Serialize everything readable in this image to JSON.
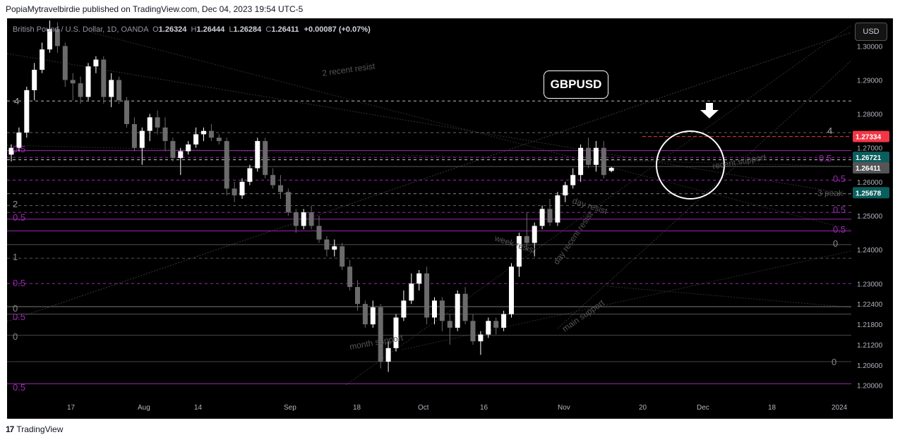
{
  "header": {
    "published_line": "PopiaMytravelbirdie published on TradingView.com, Dec 04, 2023 19:54 UTC-5"
  },
  "legend": {
    "symbol": "British Pound / U.S. Dollar, 1D, OANDA",
    "o_label": "O",
    "o_value": "1.26324",
    "h_label": "H",
    "h_value": "1.26444",
    "l_label": "L",
    "l_value": "1.26284",
    "c_label": "C",
    "c_value": "1.26411",
    "change": "+0.00087 (+0.07%)"
  },
  "currency_button": "USD",
  "annotation_box": "GBPUSD",
  "footer": {
    "brand": "TradingView"
  },
  "colors": {
    "background": "#000000",
    "candle_up": "#ffffff",
    "candle_down": "#6b6b6b",
    "fib_purple": "#9c27b0",
    "resistance_red": "#f23645",
    "label_teal": "#0b5e5e"
  },
  "chart_data": {
    "type": "candlestick",
    "instrument": "British Pound / U.S. Dollar, 1D, OANDA",
    "ylim": [
      1.196,
      1.3065
    ],
    "y_ticks": [
      "1.30000",
      "1.29000",
      "1.28000",
      "1.27000",
      "1.26000",
      "1.25000",
      "1.24000",
      "1.23000",
      "1.22400",
      "1.21800",
      "1.21200",
      "1.20600",
      "1.20000"
    ],
    "y_tick_values": [
      1.3,
      1.29,
      1.28,
      1.27,
      1.26,
      1.25,
      1.24,
      1.23,
      1.224,
      1.218,
      1.212,
      1.206,
      1.2
    ],
    "x_ticks": [
      {
        "label": "17",
        "index": 5
      },
      {
        "label": "Aug",
        "index": 12
      },
      {
        "label": "14",
        "index": 20
      },
      {
        "label": "Sep",
        "index": 28
      },
      {
        "label": "18",
        "index": 37
      },
      {
        "label": "Oct",
        "index": 43
      },
      {
        "label": "16",
        "index": 50
      },
      {
        "label": "Nov",
        "index": 57
      },
      {
        "label": "20",
        "index": 66
      },
      {
        "label": "Dec",
        "index": 73
      },
      {
        "label": "18",
        "index": 81
      },
      {
        "label": "2024",
        "index": 88
      }
    ],
    "price_labels": [
      {
        "value": "1.27334",
        "price": 1.27334,
        "color": "#f23645"
      },
      {
        "value": "1.26721",
        "price": 1.26721,
        "color": "#0b5e5e"
      },
      {
        "value": "1.26411",
        "price": 1.26411,
        "color": "#555555"
      },
      {
        "value": "1.25678",
        "price": 1.25678,
        "color": "#0b5e5e"
      }
    ],
    "candles": [
      [
        1.268,
        1.271,
        1.266,
        1.27
      ],
      [
        1.27,
        1.276,
        1.269,
        1.2745
      ],
      [
        1.2745,
        1.288,
        1.273,
        1.287
      ],
      [
        1.287,
        1.295,
        1.284,
        1.293
      ],
      [
        1.293,
        1.301,
        1.292,
        1.299
      ],
      [
        1.299,
        1.3075,
        1.298,
        1.305
      ],
      [
        1.305,
        1.307,
        1.298,
        1.3
      ],
      [
        1.3,
        1.301,
        1.288,
        1.29
      ],
      [
        1.29,
        1.292,
        1.284,
        1.289
      ],
      [
        1.289,
        1.291,
        1.283,
        1.285
      ],
      [
        1.285,
        1.295,
        1.284,
        1.294
      ],
      [
        1.294,
        1.297,
        1.292,
        1.296
      ],
      [
        1.296,
        1.297,
        1.283,
        1.285
      ],
      [
        1.285,
        1.292,
        1.282,
        1.29
      ],
      [
        1.29,
        1.291,
        1.283,
        1.284
      ],
      [
        1.284,
        1.285,
        1.276,
        1.277
      ],
      [
        1.277,
        1.279,
        1.269,
        1.27
      ],
      [
        1.27,
        1.276,
        1.265,
        1.275
      ],
      [
        1.275,
        1.28,
        1.272,
        1.279
      ],
      [
        1.279,
        1.281,
        1.274,
        1.276
      ],
      [
        1.276,
        1.279,
        1.269,
        1.272
      ],
      [
        1.272,
        1.273,
        1.266,
        1.267
      ],
      [
        1.267,
        1.27,
        1.262,
        1.269
      ],
      [
        1.269,
        1.272,
        1.268,
        1.271
      ],
      [
        1.271,
        1.276,
        1.27,
        1.274
      ],
      [
        1.274,
        1.276,
        1.272,
        1.275
      ],
      [
        1.275,
        1.277,
        1.272,
        1.273
      ],
      [
        1.273,
        1.274,
        1.271,
        1.272
      ],
      [
        1.272,
        1.273,
        1.256,
        1.258
      ],
      [
        1.258,
        1.26,
        1.254,
        1.256
      ],
      [
        1.256,
        1.261,
        1.255,
        1.26
      ],
      [
        1.26,
        1.265,
        1.259,
        1.264
      ],
      [
        1.264,
        1.273,
        1.263,
        1.272
      ],
      [
        1.272,
        1.273,
        1.261,
        1.262
      ],
      [
        1.262,
        1.264,
        1.258,
        1.259
      ],
      [
        1.259,
        1.262,
        1.255,
        1.257
      ],
      [
        1.257,
        1.258,
        1.25,
        1.251
      ],
      [
        1.251,
        1.252,
        1.245,
        1.247
      ],
      [
        1.247,
        1.252,
        1.246,
        1.251
      ],
      [
        1.251,
        1.253,
        1.246,
        1.247
      ],
      [
        1.247,
        1.25,
        1.242,
        1.243
      ],
      [
        1.243,
        1.244,
        1.238,
        1.24
      ],
      [
        1.24,
        1.243,
        1.238,
        1.241
      ],
      [
        1.241,
        1.242,
        1.234,
        1.235
      ],
      [
        1.235,
        1.237,
        1.228,
        1.229
      ],
      [
        1.229,
        1.231,
        1.222,
        1.224
      ],
      [
        1.224,
        1.225,
        1.217,
        1.218
      ],
      [
        1.218,
        1.225,
        1.217,
        1.223
      ],
      [
        1.223,
        1.224,
        1.205,
        1.207
      ],
      [
        1.207,
        1.213,
        1.204,
        1.211
      ],
      [
        1.211,
        1.221,
        1.21,
        1.22
      ],
      [
        1.22,
        1.228,
        1.219,
        1.225
      ],
      [
        1.225,
        1.233,
        1.224,
        1.23
      ],
      [
        1.23,
        1.234,
        1.228,
        1.233
      ],
      [
        1.233,
        1.235,
        1.218,
        1.22
      ],
      [
        1.22,
        1.226,
        1.218,
        1.225
      ],
      [
        1.225,
        1.226,
        1.216,
        1.219
      ],
      [
        1.219,
        1.221,
        1.212,
        1.217
      ],
      [
        1.217,
        1.228,
        1.216,
        1.227
      ],
      [
        1.227,
        1.229,
        1.218,
        1.219
      ],
      [
        1.219,
        1.221,
        1.212,
        1.213
      ],
      [
        1.213,
        1.216,
        1.209,
        1.215
      ],
      [
        1.215,
        1.22,
        1.214,
        1.219
      ],
      [
        1.219,
        1.22,
        1.215,
        1.217
      ],
      [
        1.217,
        1.222,
        1.216,
        1.221
      ],
      [
        1.221,
        1.236,
        1.22,
        1.235
      ]
    ],
    "annotations": [
      "2 recent resist",
      "week resist",
      "day recent resist",
      "day resist",
      "month support",
      "main support",
      "3 peak",
      "recent support",
      "4",
      "3",
      "2",
      "1",
      "0",
      "0.5"
    ]
  }
}
